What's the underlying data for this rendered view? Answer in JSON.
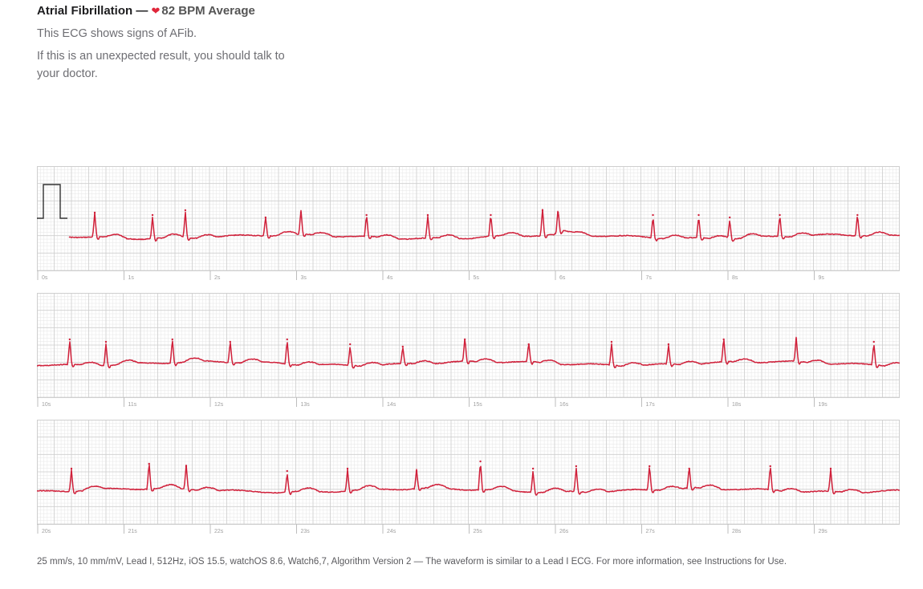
{
  "header": {
    "title": "Atrial Fibrillation —",
    "heart_icon": "heart-icon",
    "bpm": "82 BPM Average",
    "message": "This ECG shows signs of AFib.",
    "advice": "If this is an unexpected result, you should talk to your doctor."
  },
  "footer": {
    "text": "25 mm/s, 10 mm/mV, Lead I, 512Hz, iOS 15.5, watchOS 8.6, Watch6,7, Algorithm Version 2 — The waveform is similar to a Lead I ECG. For more information, see Instructions for Use."
  },
  "colors": {
    "trace": "#d0203a",
    "grid_minor": "#e6e6e6",
    "grid_major": "#cfcfcf",
    "calibration": "#333333",
    "heart": "#e0263a"
  },
  "chart_data": {
    "type": "line",
    "title": "",
    "xlabel": "",
    "ylabel": "",
    "sweep_speed": "25 mm/s",
    "gain": "10 mm/mV",
    "seconds_per_strip": 10,
    "strips": [
      {
        "xlim": [
          0,
          10
        ],
        "tick_labels": [
          "0s",
          "1s",
          "2s",
          "3s",
          "4s",
          "5s",
          "6s",
          "7s",
          "8s",
          "9s"
        ],
        "r_peak_times_s": [
          0.67,
          1.34,
          1.72,
          2.65,
          3.06,
          3.82,
          4.53,
          5.26,
          5.86,
          6.04,
          7.14,
          7.67,
          8.03,
          8.61,
          9.51
        ],
        "r_peak_amplitude_mV": [
          1.0,
          0.9,
          1.1,
          0.8,
          1.0,
          0.9,
          0.9,
          0.9,
          1.1,
          1.0,
          0.9,
          0.9,
          0.8,
          0.9,
          0.9
        ]
      },
      {
        "xlim": [
          10,
          20
        ],
        "tick_labels": [
          "10s",
          "11s",
          "12s",
          "13s",
          "14s",
          "15s",
          "16s",
          "17s",
          "18s",
          "19s"
        ],
        "r_peak_times_s": [
          10.38,
          10.8,
          11.57,
          12.24,
          12.9,
          13.63,
          14.24,
          14.96,
          15.7,
          16.66,
          17.32,
          17.96,
          18.8,
          19.7
        ],
        "r_peak_amplitude_mV": [
          1.0,
          0.9,
          1.0,
          0.9,
          1.0,
          0.8,
          0.7,
          1.0,
          0.8,
          0.9,
          0.8,
          1.0,
          1.0,
          0.9
        ]
      },
      {
        "xlim": [
          20,
          30
        ],
        "tick_labels": [
          "20s",
          "21s",
          "22s",
          "23s",
          "24s",
          "25s",
          "26s",
          "27s",
          "28s",
          "29s"
        ],
        "r_peak_times_s": [
          20.4,
          21.3,
          21.73,
          22.9,
          23.6,
          24.4,
          25.14,
          25.75,
          26.25,
          27.1,
          27.56,
          28.5,
          29.2
        ],
        "r_peak_amplitude_mV": [
          0.9,
          1.1,
          1.0,
          0.8,
          0.9,
          0.8,
          1.2,
          0.9,
          1.0,
          1.0,
          0.9,
          1.0,
          0.9
        ]
      }
    ]
  }
}
